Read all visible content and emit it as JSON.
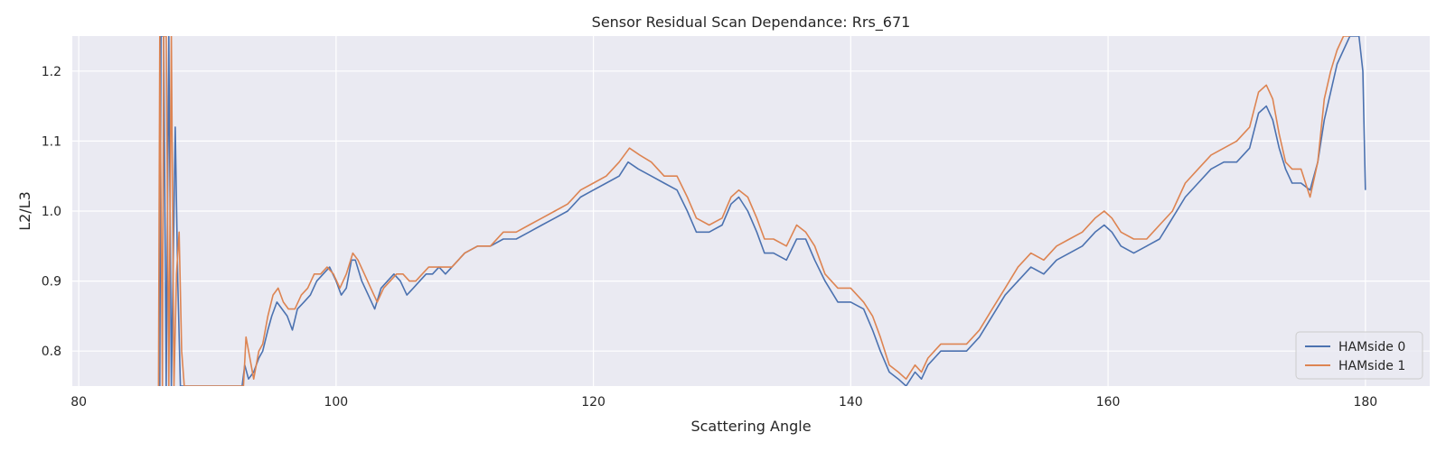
{
  "chart_data": {
    "type": "line",
    "title": "Sensor Residual Scan Dependance: Rrs_671",
    "xlabel": "Scattering Angle",
    "ylabel": "L2/L3",
    "xlim": [
      79.5,
      185
    ],
    "ylim": [
      0.75,
      1.25
    ],
    "xticks": [
      80,
      100,
      120,
      140,
      160,
      180
    ],
    "yticks": [
      0.8,
      0.9,
      1.0,
      1.1,
      1.2
    ],
    "grid": true,
    "legend_position": "lower-right",
    "background": "#eaeaf2",
    "series": [
      {
        "name": "HAMside 0",
        "color": "#4c72b0",
        "points": [
          [
            86.3,
            0.75
          ],
          [
            86.4,
            1.25
          ],
          [
            86.6,
            1.25
          ],
          [
            86.8,
            0.75
          ],
          [
            87.0,
            1.25
          ],
          [
            87.2,
            0.75
          ],
          [
            87.5,
            1.12
          ],
          [
            87.7,
            0.9
          ],
          [
            87.9,
            0.75
          ],
          [
            92.7,
            0.75
          ],
          [
            92.9,
            0.78
          ],
          [
            93.2,
            0.76
          ],
          [
            93.6,
            0.77
          ],
          [
            94.0,
            0.79
          ],
          [
            94.3,
            0.8
          ],
          [
            94.7,
            0.83
          ],
          [
            95.0,
            0.85
          ],
          [
            95.4,
            0.87
          ],
          [
            95.8,
            0.86
          ],
          [
            96.2,
            0.85
          ],
          [
            96.6,
            0.83
          ],
          [
            97.0,
            0.86
          ],
          [
            97.5,
            0.87
          ],
          [
            98.0,
            0.88
          ],
          [
            98.5,
            0.9
          ],
          [
            99.0,
            0.91
          ],
          [
            99.5,
            0.92
          ],
          [
            100.0,
            0.9
          ],
          [
            100.4,
            0.88
          ],
          [
            100.8,
            0.89
          ],
          [
            101.2,
            0.93
          ],
          [
            101.5,
            0.93
          ],
          [
            102.0,
            0.9
          ],
          [
            102.5,
            0.88
          ],
          [
            103.0,
            0.86
          ],
          [
            103.5,
            0.89
          ],
          [
            104.0,
            0.9
          ],
          [
            104.5,
            0.91
          ],
          [
            105.0,
            0.9
          ],
          [
            105.5,
            0.88
          ],
          [
            106.0,
            0.89
          ],
          [
            106.5,
            0.9
          ],
          [
            107.0,
            0.91
          ],
          [
            107.5,
            0.91
          ],
          [
            108.0,
            0.92
          ],
          [
            108.5,
            0.91
          ],
          [
            109.0,
            0.92
          ],
          [
            110.0,
            0.94
          ],
          [
            111.0,
            0.95
          ],
          [
            112.0,
            0.95
          ],
          [
            113.0,
            0.96
          ],
          [
            114.0,
            0.96
          ],
          [
            115.0,
            0.97
          ],
          [
            116.0,
            0.98
          ],
          [
            117.0,
            0.99
          ],
          [
            118.0,
            1.0
          ],
          [
            119.0,
            1.02
          ],
          [
            120.0,
            1.03
          ],
          [
            121.0,
            1.04
          ],
          [
            122.0,
            1.05
          ],
          [
            122.7,
            1.07
          ],
          [
            123.5,
            1.06
          ],
          [
            124.5,
            1.05
          ],
          [
            125.5,
            1.04
          ],
          [
            126.5,
            1.03
          ],
          [
            127.3,
            1.0
          ],
          [
            128.0,
            0.97
          ],
          [
            129.0,
            0.97
          ],
          [
            130.0,
            0.98
          ],
          [
            130.7,
            1.01
          ],
          [
            131.3,
            1.02
          ],
          [
            132.0,
            1.0
          ],
          [
            132.7,
            0.97
          ],
          [
            133.3,
            0.94
          ],
          [
            134.0,
            0.94
          ],
          [
            135.0,
            0.93
          ],
          [
            135.8,
            0.96
          ],
          [
            136.5,
            0.96
          ],
          [
            137.2,
            0.93
          ],
          [
            138.0,
            0.9
          ],
          [
            139.0,
            0.87
          ],
          [
            140.0,
            0.87
          ],
          [
            141.0,
            0.86
          ],
          [
            141.7,
            0.83
          ],
          [
            142.3,
            0.8
          ],
          [
            143.0,
            0.77
          ],
          [
            143.7,
            0.76
          ],
          [
            144.3,
            0.75
          ],
          [
            145.0,
            0.77
          ],
          [
            145.5,
            0.76
          ],
          [
            146.0,
            0.78
          ],
          [
            146.5,
            0.79
          ],
          [
            147.0,
            0.8
          ],
          [
            148.0,
            0.8
          ],
          [
            149.0,
            0.8
          ],
          [
            150.0,
            0.82
          ],
          [
            151.0,
            0.85
          ],
          [
            152.0,
            0.88
          ],
          [
            153.0,
            0.9
          ],
          [
            154.0,
            0.92
          ],
          [
            155.0,
            0.91
          ],
          [
            156.0,
            0.93
          ],
          [
            157.0,
            0.94
          ],
          [
            158.0,
            0.95
          ],
          [
            159.0,
            0.97
          ],
          [
            159.7,
            0.98
          ],
          [
            160.3,
            0.97
          ],
          [
            161.0,
            0.95
          ],
          [
            162.0,
            0.94
          ],
          [
            163.0,
            0.95
          ],
          [
            164.0,
            0.96
          ],
          [
            165.0,
            0.99
          ],
          [
            166.0,
            1.02
          ],
          [
            167.0,
            1.04
          ],
          [
            168.0,
            1.06
          ],
          [
            169.0,
            1.07
          ],
          [
            170.0,
            1.07
          ],
          [
            171.0,
            1.09
          ],
          [
            171.7,
            1.14
          ],
          [
            172.3,
            1.15
          ],
          [
            172.8,
            1.13
          ],
          [
            173.3,
            1.09
          ],
          [
            173.8,
            1.06
          ],
          [
            174.3,
            1.04
          ],
          [
            175.0,
            1.04
          ],
          [
            175.7,
            1.03
          ],
          [
            176.3,
            1.07
          ],
          [
            176.8,
            1.13
          ],
          [
            177.3,
            1.17
          ],
          [
            177.8,
            1.21
          ],
          [
            178.3,
            1.23
          ],
          [
            178.8,
            1.25
          ],
          [
            179.5,
            1.25
          ],
          [
            179.8,
            1.2
          ],
          [
            180.0,
            1.03
          ]
        ]
      },
      {
        "name": "HAMside 1",
        "color": "#dd8452",
        "points": [
          [
            86.2,
            0.75
          ],
          [
            86.3,
            1.25
          ],
          [
            86.5,
            0.75
          ],
          [
            86.6,
            1.25
          ],
          [
            86.8,
            1.25
          ],
          [
            87.0,
            0.75
          ],
          [
            87.2,
            1.25
          ],
          [
            87.4,
            0.75
          ],
          [
            87.6,
            0.91
          ],
          [
            87.8,
            0.97
          ],
          [
            88.0,
            0.8
          ],
          [
            88.2,
            0.75
          ],
          [
            92.8,
            0.75
          ],
          [
            93.0,
            0.82
          ],
          [
            93.3,
            0.79
          ],
          [
            93.6,
            0.76
          ],
          [
            94.0,
            0.8
          ],
          [
            94.3,
            0.81
          ],
          [
            94.7,
            0.85
          ],
          [
            95.1,
            0.88
          ],
          [
            95.5,
            0.89
          ],
          [
            95.9,
            0.87
          ],
          [
            96.3,
            0.86
          ],
          [
            96.8,
            0.86
          ],
          [
            97.3,
            0.88
          ],
          [
            97.8,
            0.89
          ],
          [
            98.3,
            0.91
          ],
          [
            98.8,
            0.91
          ],
          [
            99.3,
            0.92
          ],
          [
            99.8,
            0.91
          ],
          [
            100.3,
            0.89
          ],
          [
            100.8,
            0.91
          ],
          [
            101.3,
            0.94
          ],
          [
            101.7,
            0.93
          ],
          [
            102.2,
            0.91
          ],
          [
            102.7,
            0.89
          ],
          [
            103.2,
            0.87
          ],
          [
            103.7,
            0.89
          ],
          [
            104.2,
            0.9
          ],
          [
            104.7,
            0.91
          ],
          [
            105.2,
            0.91
          ],
          [
            105.7,
            0.9
          ],
          [
            106.2,
            0.9
          ],
          [
            106.7,
            0.91
          ],
          [
            107.2,
            0.92
          ],
          [
            108.0,
            0.92
          ],
          [
            109.0,
            0.92
          ],
          [
            110.0,
            0.94
          ],
          [
            111.0,
            0.95
          ],
          [
            112.0,
            0.95
          ],
          [
            113.0,
            0.97
          ],
          [
            114.0,
            0.97
          ],
          [
            115.0,
            0.98
          ],
          [
            116.0,
            0.99
          ],
          [
            117.0,
            1.0
          ],
          [
            118.0,
            1.01
          ],
          [
            119.0,
            1.03
          ],
          [
            120.0,
            1.04
          ],
          [
            121.0,
            1.05
          ],
          [
            122.0,
            1.07
          ],
          [
            122.8,
            1.09
          ],
          [
            123.6,
            1.08
          ],
          [
            124.5,
            1.07
          ],
          [
            125.5,
            1.05
          ],
          [
            126.5,
            1.05
          ],
          [
            127.3,
            1.02
          ],
          [
            128.0,
            0.99
          ],
          [
            129.0,
            0.98
          ],
          [
            130.0,
            0.99
          ],
          [
            130.7,
            1.02
          ],
          [
            131.3,
            1.03
          ],
          [
            132.0,
            1.02
          ],
          [
            132.7,
            0.99
          ],
          [
            133.3,
            0.96
          ],
          [
            134.0,
            0.96
          ],
          [
            135.0,
            0.95
          ],
          [
            135.8,
            0.98
          ],
          [
            136.5,
            0.97
          ],
          [
            137.2,
            0.95
          ],
          [
            138.0,
            0.91
          ],
          [
            139.0,
            0.89
          ],
          [
            140.0,
            0.89
          ],
          [
            141.0,
            0.87
          ],
          [
            141.7,
            0.85
          ],
          [
            142.3,
            0.82
          ],
          [
            143.0,
            0.78
          ],
          [
            143.7,
            0.77
          ],
          [
            144.3,
            0.76
          ],
          [
            145.0,
            0.78
          ],
          [
            145.5,
            0.77
          ],
          [
            146.0,
            0.79
          ],
          [
            146.5,
            0.8
          ],
          [
            147.0,
            0.81
          ],
          [
            148.0,
            0.81
          ],
          [
            149.0,
            0.81
          ],
          [
            150.0,
            0.83
          ],
          [
            151.0,
            0.86
          ],
          [
            152.0,
            0.89
          ],
          [
            153.0,
            0.92
          ],
          [
            154.0,
            0.94
          ],
          [
            155.0,
            0.93
          ],
          [
            156.0,
            0.95
          ],
          [
            157.0,
            0.96
          ],
          [
            158.0,
            0.97
          ],
          [
            159.0,
            0.99
          ],
          [
            159.7,
            1.0
          ],
          [
            160.3,
            0.99
          ],
          [
            161.0,
            0.97
          ],
          [
            162.0,
            0.96
          ],
          [
            163.0,
            0.96
          ],
          [
            164.0,
            0.98
          ],
          [
            165.0,
            1.0
          ],
          [
            166.0,
            1.04
          ],
          [
            167.0,
            1.06
          ],
          [
            168.0,
            1.08
          ],
          [
            169.0,
            1.09
          ],
          [
            170.0,
            1.1
          ],
          [
            171.0,
            1.12
          ],
          [
            171.7,
            1.17
          ],
          [
            172.3,
            1.18
          ],
          [
            172.8,
            1.16
          ],
          [
            173.3,
            1.11
          ],
          [
            173.8,
            1.07
          ],
          [
            174.3,
            1.06
          ],
          [
            175.0,
            1.06
          ],
          [
            175.7,
            1.02
          ],
          [
            176.3,
            1.07
          ],
          [
            176.8,
            1.16
          ],
          [
            177.3,
            1.2
          ],
          [
            177.8,
            1.23
          ],
          [
            178.3,
            1.25
          ],
          [
            178.8,
            1.25
          ]
        ]
      }
    ]
  }
}
